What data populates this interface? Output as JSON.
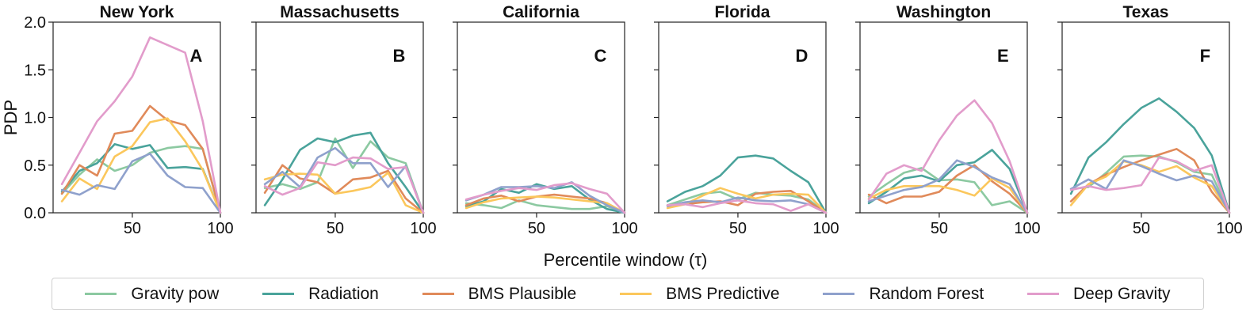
{
  "chart_data": {
    "type": "line",
    "xlabel": "Percentile window (τ)",
    "ylabel": "PDP",
    "xlim": [
      5,
      100
    ],
    "ylim": [
      0,
      2.0
    ],
    "xticks": [
      50,
      100
    ],
    "yticks": [
      0.0,
      0.5,
      1.0,
      1.5,
      2.0
    ],
    "ytick_labels": [
      "0.0",
      "0.5",
      "1.0",
      "1.5",
      "2.0"
    ],
    "x": [
      10,
      20,
      30,
      40,
      50,
      60,
      70,
      80,
      90,
      100
    ],
    "series_meta": [
      {
        "name": "Gravity pow",
        "color": "#8cc9a1"
      },
      {
        "name": "Radiation",
        "color": "#4aa39b"
      },
      {
        "name": "BMS Plausible",
        "color": "#e08a5a"
      },
      {
        "name": "BMS Predictive",
        "color": "#fbc75c"
      },
      {
        "name": "Random Forest",
        "color": "#8fa1cc"
      },
      {
        "name": "Deep Gravity",
        "color": "#e29ccb"
      }
    ],
    "panels": [
      {
        "title": "New York",
        "letter": "A",
        "series": [
          {
            "name": "Gravity pow",
            "values": [
              0.2,
              0.4,
              0.56,
              0.44,
              0.5,
              0.63,
              0.68,
              0.7,
              0.67,
              0.0
            ]
          },
          {
            "name": "Radiation",
            "values": [
              0.22,
              0.44,
              0.52,
              0.72,
              0.67,
              0.71,
              0.47,
              0.48,
              0.46,
              0.0
            ]
          },
          {
            "name": "BMS Plausible",
            "values": [
              0.2,
              0.5,
              0.39,
              0.83,
              0.86,
              1.12,
              0.97,
              0.92,
              0.67,
              0.0
            ]
          },
          {
            "name": "BMS Predictive",
            "values": [
              0.12,
              0.36,
              0.25,
              0.59,
              0.7,
              0.95,
              0.99,
              0.75,
              0.45,
              0.0
            ]
          },
          {
            "name": "Random Forest",
            "values": [
              0.24,
              0.19,
              0.29,
              0.25,
              0.54,
              0.62,
              0.39,
              0.27,
              0.26,
              0.0
            ]
          },
          {
            "name": "Deep Gravity",
            "values": [
              0.3,
              0.63,
              0.96,
              1.17,
              1.43,
              1.84,
              1.76,
              1.68,
              0.96,
              0.0
            ]
          }
        ]
      },
      {
        "title": "Massachusetts",
        "letter": "B",
        "series": [
          {
            "name": "Gravity pow",
            "values": [
              0.26,
              0.3,
              0.25,
              0.32,
              0.78,
              0.47,
              0.75,
              0.58,
              0.52,
              0.0
            ]
          },
          {
            "name": "Radiation",
            "values": [
              0.08,
              0.35,
              0.66,
              0.78,
              0.74,
              0.81,
              0.84,
              0.52,
              0.27,
              0.0
            ]
          },
          {
            "name": "BMS Plausible",
            "values": [
              0.21,
              0.5,
              0.36,
              0.32,
              0.2,
              0.35,
              0.37,
              0.44,
              0.15,
              0.0
            ]
          },
          {
            "name": "BMS Predictive",
            "values": [
              0.35,
              0.4,
              0.41,
              0.4,
              0.2,
              0.23,
              0.27,
              0.42,
              0.08,
              0.0
            ]
          },
          {
            "name": "Random Forest",
            "values": [
              0.3,
              0.43,
              0.27,
              0.58,
              0.68,
              0.52,
              0.52,
              0.27,
              0.49,
              0.0
            ]
          },
          {
            "name": "Deep Gravity",
            "values": [
              0.28,
              0.19,
              0.26,
              0.53,
              0.5,
              0.58,
              0.57,
              0.46,
              0.48,
              0.0
            ]
          }
        ]
      },
      {
        "title": "California",
        "letter": "C",
        "series": [
          {
            "name": "Gravity pow",
            "values": [
              0.1,
              0.08,
              0.05,
              0.13,
              0.08,
              0.06,
              0.04,
              0.04,
              0.07,
              0.0
            ]
          },
          {
            "name": "Radiation",
            "values": [
              0.07,
              0.12,
              0.25,
              0.21,
              0.3,
              0.25,
              0.28,
              0.14,
              0.04,
              0.0
            ]
          },
          {
            "name": "BMS Plausible",
            "values": [
              0.08,
              0.15,
              0.18,
              0.12,
              0.17,
              0.19,
              0.17,
              0.15,
              0.1,
              0.0
            ]
          },
          {
            "name": "BMS Predictive",
            "values": [
              0.05,
              0.11,
              0.15,
              0.16,
              0.17,
              0.16,
              0.14,
              0.12,
              0.1,
              0.0
            ]
          },
          {
            "name": "Random Forest",
            "values": [
              0.13,
              0.19,
              0.27,
              0.27,
              0.28,
              0.26,
              0.32,
              0.18,
              0.08,
              0.0
            ]
          },
          {
            "name": "Deep Gravity",
            "values": [
              0.14,
              0.19,
              0.23,
              0.26,
              0.24,
              0.29,
              0.31,
              0.25,
              0.2,
              0.0
            ]
          }
        ]
      },
      {
        "title": "Florida",
        "letter": "D",
        "series": [
          {
            "name": "Gravity pow",
            "values": [
              0.08,
              0.14,
              0.2,
              0.22,
              0.14,
              0.21,
              0.19,
              0.18,
              0.14,
              0.0
            ]
          },
          {
            "name": "Radiation",
            "values": [
              0.12,
              0.22,
              0.28,
              0.39,
              0.58,
              0.6,
              0.57,
              0.44,
              0.32,
              0.0
            ]
          },
          {
            "name": "BMS Plausible",
            "values": [
              0.08,
              0.09,
              0.11,
              0.12,
              0.08,
              0.2,
              0.22,
              0.23,
              0.12,
              0.0
            ]
          },
          {
            "name": "BMS Predictive",
            "values": [
              0.05,
              0.09,
              0.18,
              0.26,
              0.2,
              0.15,
              0.19,
              0.2,
              0.19,
              0.0
            ]
          },
          {
            "name": "Random Forest",
            "values": [
              0.07,
              0.11,
              0.13,
              0.11,
              0.16,
              0.13,
              0.12,
              0.13,
              0.09,
              0.0
            ]
          },
          {
            "name": "Deep Gravity",
            "values": [
              0.08,
              0.09,
              0.06,
              0.1,
              0.13,
              0.1,
              0.09,
              0.02,
              0.09,
              0.0
            ]
          }
        ]
      },
      {
        "title": "Washington",
        "letter": "E",
        "series": [
          {
            "name": "Gravity pow",
            "values": [
              0.17,
              0.3,
              0.42,
              0.47,
              0.34,
              0.35,
              0.32,
              0.08,
              0.12,
              0.0
            ]
          },
          {
            "name": "Radiation",
            "values": [
              0.1,
              0.22,
              0.36,
              0.39,
              0.33,
              0.5,
              0.53,
              0.66,
              0.46,
              0.0
            ]
          },
          {
            "name": "BMS Plausible",
            "values": [
              0.19,
              0.1,
              0.17,
              0.17,
              0.22,
              0.39,
              0.5,
              0.33,
              0.2,
              0.0
            ]
          },
          {
            "name": "BMS Predictive",
            "values": [
              0.15,
              0.24,
              0.28,
              0.28,
              0.28,
              0.24,
              0.18,
              0.36,
              0.26,
              0.0
            ]
          },
          {
            "name": "Random Forest",
            "values": [
              0.12,
              0.18,
              0.24,
              0.27,
              0.35,
              0.55,
              0.48,
              0.37,
              0.3,
              0.0
            ]
          },
          {
            "name": "Deep Gravity",
            "values": [
              0.14,
              0.41,
              0.5,
              0.44,
              0.76,
              1.02,
              1.18,
              0.94,
              0.54,
              0.0
            ]
          }
        ]
      },
      {
        "title": "Texas",
        "letter": "F",
        "series": [
          {
            "name": "Gravity pow",
            "values": [
              0.25,
              0.27,
              0.42,
              0.59,
              0.6,
              0.59,
              0.53,
              0.43,
              0.4,
              0.0
            ]
          },
          {
            "name": "Radiation",
            "values": [
              0.2,
              0.58,
              0.74,
              0.93,
              1.1,
              1.2,
              1.06,
              0.89,
              0.6,
              0.0
            ]
          },
          {
            "name": "BMS Plausible",
            "values": [
              0.12,
              0.3,
              0.4,
              0.48,
              0.55,
              0.61,
              0.67,
              0.55,
              0.22,
              0.0
            ]
          },
          {
            "name": "BMS Predictive",
            "values": [
              0.08,
              0.3,
              0.38,
              0.54,
              0.5,
              0.43,
              0.49,
              0.37,
              0.28,
              0.0
            ]
          },
          {
            "name": "Random Forest",
            "values": [
              0.25,
              0.35,
              0.25,
              0.55,
              0.49,
              0.41,
              0.34,
              0.39,
              0.33,
              0.0
            ]
          },
          {
            "name": "Deep Gravity",
            "values": [
              0.24,
              0.28,
              0.24,
              0.26,
              0.29,
              0.58,
              0.54,
              0.44,
              0.5,
              0.0
            ]
          }
        ]
      }
    ]
  }
}
